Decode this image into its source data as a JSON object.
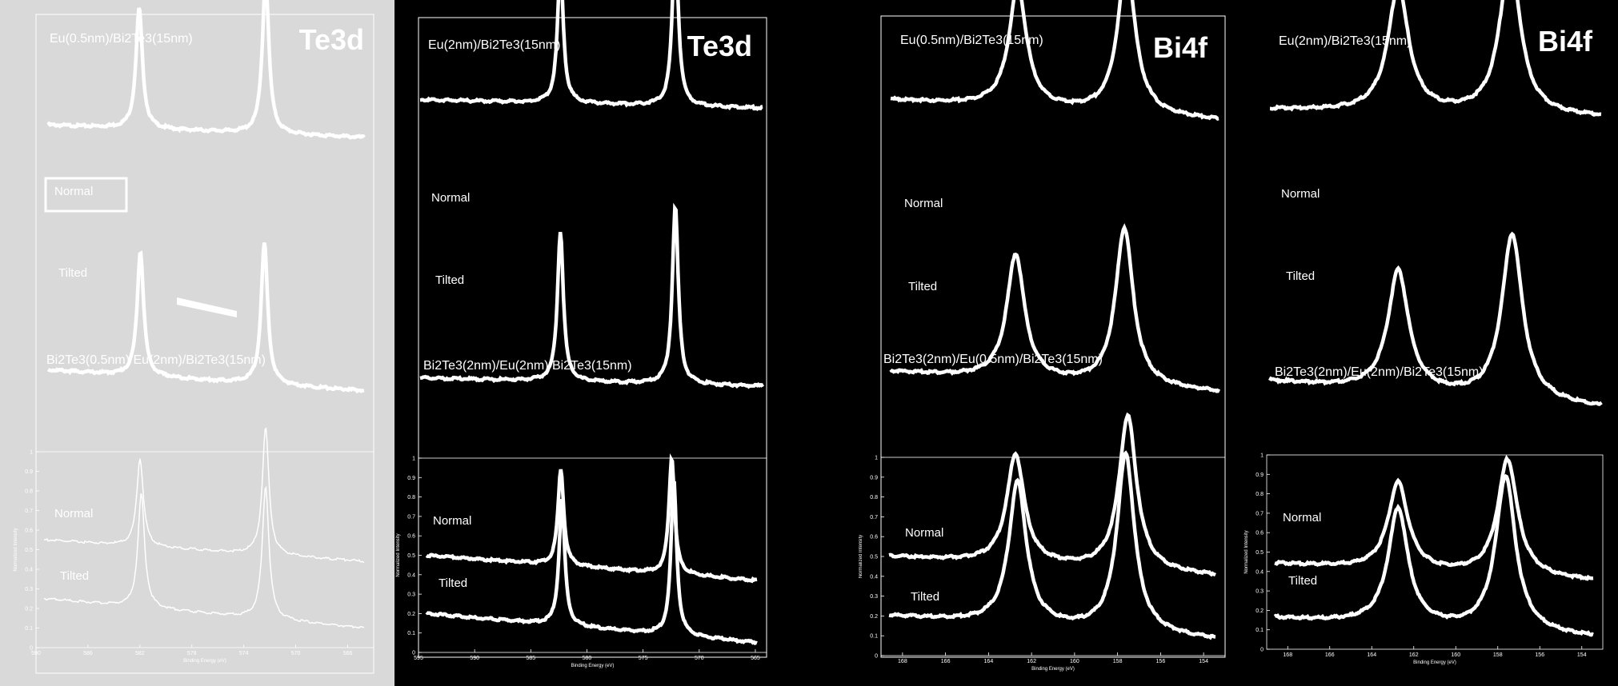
{
  "figure": {
    "background": "#000000",
    "panel1_background": "#d9d9d9",
    "line_color": "#ffffff"
  },
  "chart_data": [
    {
      "type": "line",
      "region": "Te3d",
      "title": "Te3d",
      "top": {
        "subtitle": "Eu(0.5nm)/Bi2Te3(15nm)",
        "series": [
          {
            "name": "Normal",
            "peaks": [
              {
                "x": 582.5,
                "h": 0.58
              },
              {
                "x": 572.1,
                "h": 0.75
              }
            ],
            "baseline_left": 0.36,
            "baseline_right": 0.3
          },
          {
            "name": "Tilted",
            "peaks": [
              {
                "x": 582.4,
                "h": 0.6
              },
              {
                "x": 572.2,
                "h": 0.68
              }
            ],
            "baseline_left": 0.22,
            "baseline_right": 0.12
          }
        ]
      },
      "bottom": {
        "subtitle": "Bi2Te3(0.5nm)/Eu(2nm)/Bi2Te3(15nm)",
        "xlabel": "Binding Energy (eV)",
        "ylabel": "Normalized Intensity",
        "xlim": [
          590,
          564
        ],
        "ylim": [
          0,
          1
        ],
        "xticks": [
          590,
          586,
          582,
          578,
          574,
          570,
          566
        ],
        "yticks": [
          0,
          0.1,
          0.2,
          0.3,
          0.4,
          0.5,
          0.6,
          0.7,
          0.8,
          0.9,
          1
        ],
        "series": [
          {
            "name": "Normal",
            "peaks": [
              {
                "x": 582.2,
                "h": 0.45
              },
              {
                "x": 572.0,
                "h": 0.65
              }
            ],
            "baseline_left": 0.55,
            "baseline_right": 0.44
          },
          {
            "name": "Tilted",
            "peaks": [
              {
                "x": 582.1,
                "h": 0.58
              },
              {
                "x": 572.0,
                "h": 0.68
              }
            ],
            "baseline_left": 0.25,
            "baseline_right": 0.1
          }
        ]
      }
    },
    {
      "type": "line",
      "region": "Te3d",
      "title": "Te3d",
      "top": {
        "subtitle": "Eu(2nm)/Bi2Te3(15nm)",
        "series": [
          {
            "name": "Normal",
            "peaks": [
              {
                "x": 582.3,
                "h": 0.65
              },
              {
                "x": 571.9,
                "h": 0.82
              }
            ],
            "baseline_left": 0.52,
            "baseline_right": 0.48
          },
          {
            "name": "Tilted",
            "peaks": [
              {
                "x": 582.3,
                "h": 0.72
              },
              {
                "x": 571.9,
                "h": 0.86
              }
            ],
            "baseline_left": 0.22,
            "baseline_right": 0.18
          }
        ]
      },
      "bottom": {
        "subtitle": "Bi2Te3(2nm)/Eu(2nm)/Bi2Te3(15nm)",
        "xlabel": "Binding Energy (eV)",
        "ylabel": "Normalized Intensity",
        "xlim": [
          595,
          564
        ],
        "ylim": [
          0,
          1
        ],
        "xticks": [
          595,
          590,
          585,
          580,
          575,
          570,
          565
        ],
        "yticks": [
          0,
          0.1,
          0.2,
          0.3,
          0.4,
          0.5,
          0.6,
          0.7,
          0.8,
          0.9,
          1
        ],
        "series": [
          {
            "name": "Normal",
            "peaks": [
              {
                "x": 582.4,
                "h": 0.5
              },
              {
                "x": 572.0,
                "h": 0.6
              }
            ],
            "baseline_left": 0.5,
            "baseline_right": 0.37
          },
          {
            "name": "Tilted",
            "peaks": [
              {
                "x": 582.3,
                "h": 0.65
              },
              {
                "x": 571.8,
                "h": 0.8
              }
            ],
            "baseline_left": 0.2,
            "baseline_right": 0.05
          }
        ]
      }
    },
    {
      "type": "line",
      "region": "Bi4f",
      "title": "Bi4f",
      "top": {
        "subtitle": "Eu(0.5nm)/Bi2Te3(15nm)",
        "series": [
          {
            "name": "Normal",
            "peaks": [
              {
                "x": 162.8,
                "h": 0.58
              },
              {
                "x": 157.5,
                "h": 0.72
              }
            ],
            "baseline_left": 0.52,
            "baseline_right": 0.42
          },
          {
            "name": "Tilted",
            "peaks": [
              {
                "x": 162.9,
                "h": 0.6
              },
              {
                "x": 157.6,
                "h": 0.76
              }
            ],
            "baseline_left": 0.25,
            "baseline_right": 0.15
          }
        ]
      },
      "bottom": {
        "subtitle": "Bi2Te3(2nm)/Eu(0.5nm)/Bi2Te3(15nm)",
        "xlabel": "Binding Energy (eV)",
        "ylabel": "Normalized Intensity",
        "xlim": [
          169,
          153
        ],
        "ylim": [
          0,
          1
        ],
        "xticks": [
          168,
          166,
          164,
          162,
          160,
          158,
          156,
          154
        ],
        "yticks": [
          0,
          0.1,
          0.2,
          0.3,
          0.4,
          0.5,
          0.6,
          0.7,
          0.8,
          0.9,
          1
        ],
        "series": [
          {
            "name": "Normal",
            "peaks": [
              {
                "x": 162.8,
                "h": 0.55
              },
              {
                "x": 157.3,
                "h": 0.78
              }
            ],
            "baseline_left": 0.5,
            "baseline_right": 0.4
          },
          {
            "name": "Tilted",
            "peaks": [
              {
                "x": 162.7,
                "h": 0.72
              },
              {
                "x": 157.4,
                "h": 0.9
              }
            ],
            "baseline_left": 0.2,
            "baseline_right": 0.08
          }
        ]
      }
    },
    {
      "type": "line",
      "region": "Bi4f",
      "title": "Bi4f",
      "top": {
        "subtitle": "Eu(2nm)/Bi2Te3(15nm)",
        "series": [
          {
            "name": "Normal",
            "peaks": [
              {
                "x": 162.8,
                "h": 0.6
              },
              {
                "x": 157.4,
                "h": 0.75
              }
            ],
            "baseline_left": 0.52,
            "baseline_right": 0.48
          },
          {
            "name": "Tilted",
            "peaks": [
              {
                "x": 162.8,
                "h": 0.58
              },
              {
                "x": 157.3,
                "h": 0.8
              }
            ],
            "baseline_left": 0.25,
            "baseline_right": 0.12
          }
        ]
      },
      "bottom": {
        "subtitle": "Bi2Te3(2nm)/Eu(2nm)/Bi2Te3(15nm)",
        "xlabel": "Binding Energy (eV)",
        "ylabel": "Normalized Intensity",
        "xlim": [
          169,
          153
        ],
        "ylim": [
          0,
          1
        ],
        "xticks": [
          168,
          166,
          164,
          162,
          160,
          158,
          156,
          154
        ],
        "yticks": [
          0,
          0.1,
          0.2,
          0.3,
          0.4,
          0.5,
          0.6,
          0.7,
          0.8,
          0.9,
          1
        ],
        "series": [
          {
            "name": "Normal",
            "peaks": [
              {
                "x": 162.8,
                "h": 0.45
              },
              {
                "x": 157.3,
                "h": 0.6
              }
            ],
            "baseline_left": 0.44,
            "baseline_right": 0.35
          },
          {
            "name": "Tilted",
            "peaks": [
              {
                "x": 162.8,
                "h": 0.6
              },
              {
                "x": 157.4,
                "h": 0.8
              }
            ],
            "baseline_left": 0.16,
            "baseline_right": 0.06
          }
        ]
      }
    }
  ]
}
